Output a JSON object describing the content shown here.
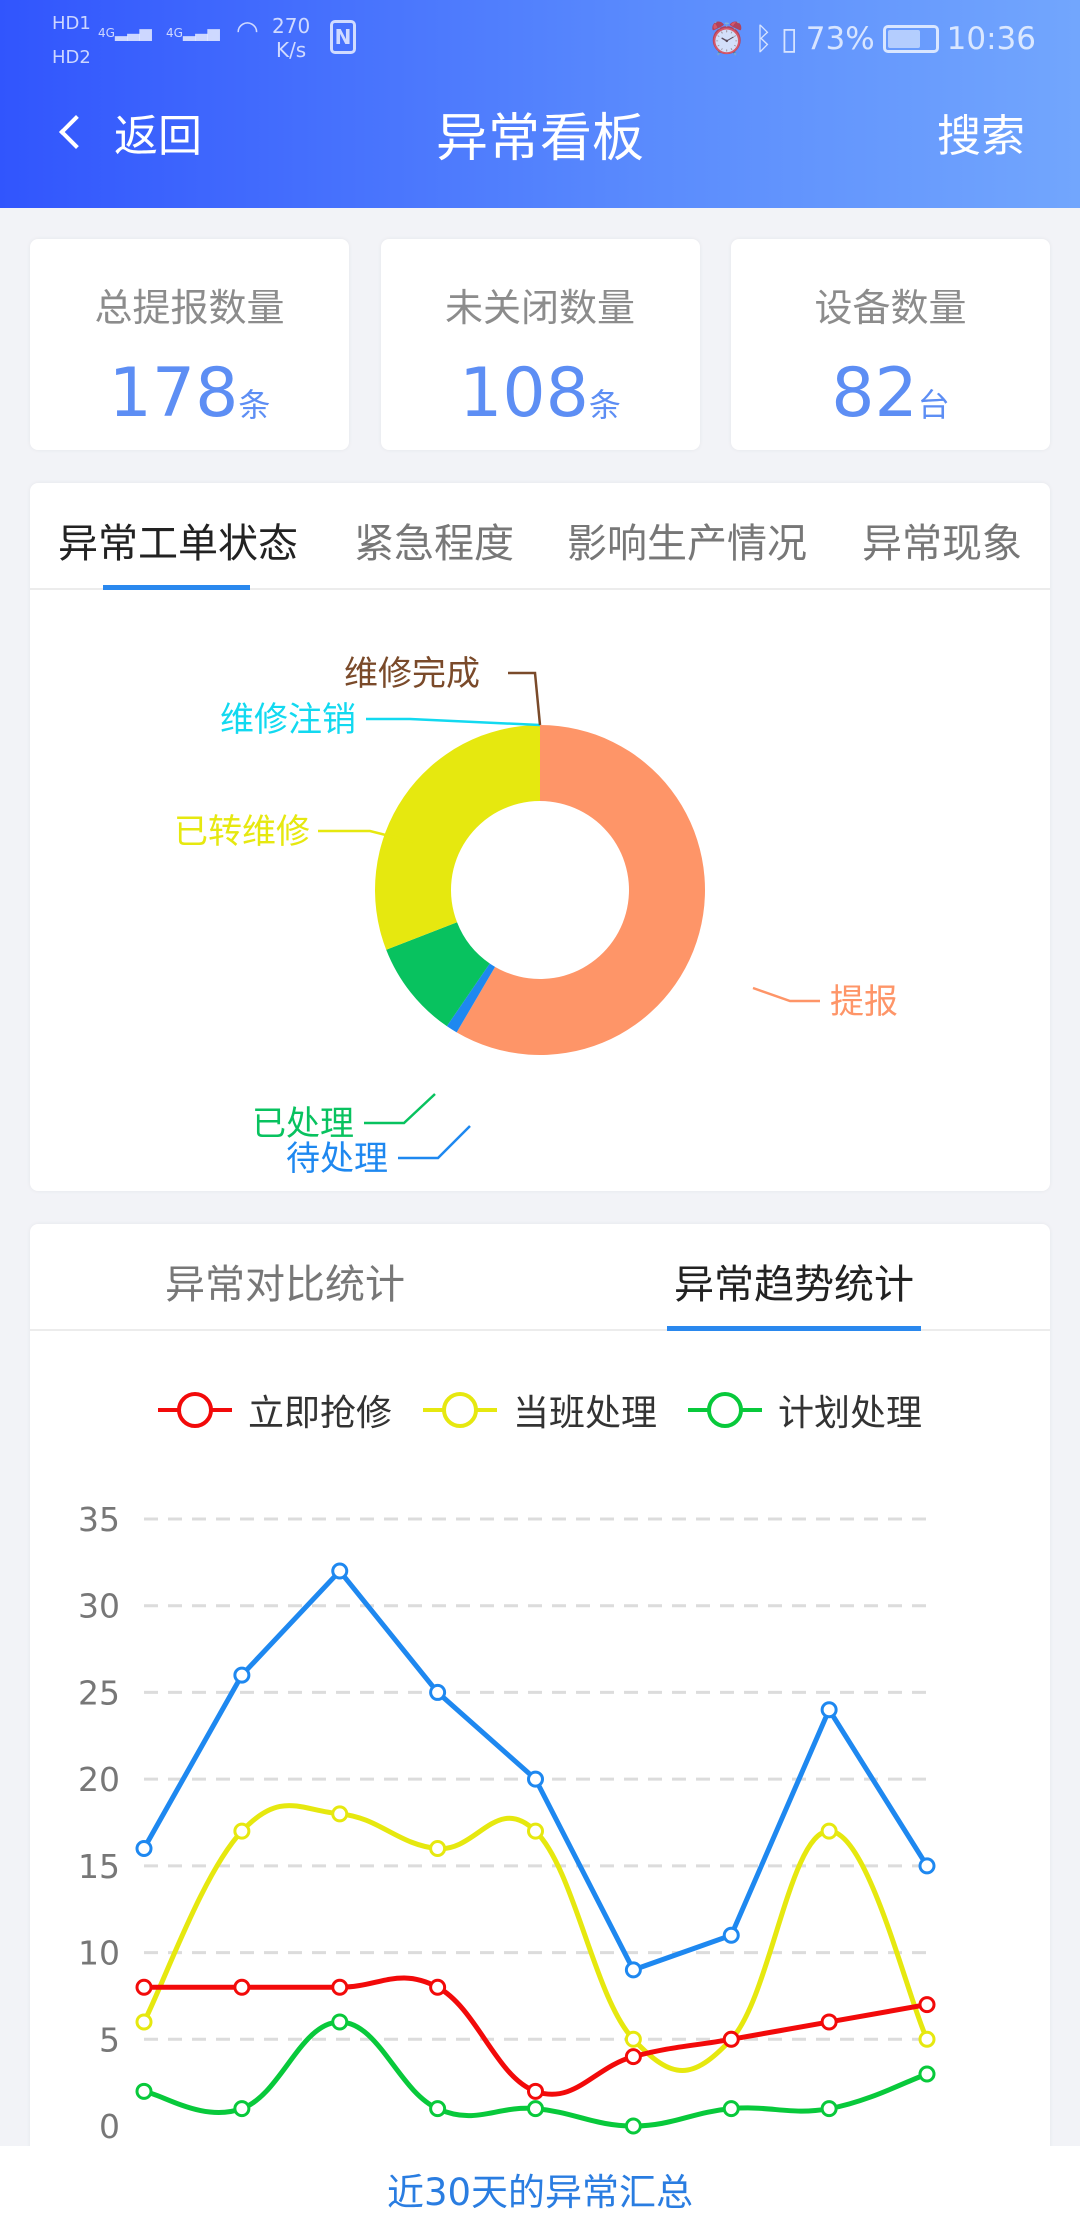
{
  "status_bar": {
    "sim": [
      "HD1",
      "HD2"
    ],
    "network": [
      "4G",
      "4G"
    ],
    "speed_value": "270",
    "speed_unit": "K/s",
    "nfc": "N",
    "battery": "73%",
    "battery_level": 0.73,
    "time": "10:36"
  },
  "header": {
    "back_label": "返回",
    "title": "异常看板",
    "search_label": "搜索",
    "gradient": [
      "#3155fd",
      "#72a6fd"
    ]
  },
  "stats": [
    {
      "label": "总提报数量",
      "value": "178",
      "unit": "条"
    },
    {
      "label": "未关闭数量",
      "value": "108",
      "unit": "条"
    },
    {
      "label": "设备数量",
      "value": "82",
      "unit": "台"
    }
  ],
  "status_panel": {
    "tabs": [
      "异常工单状态",
      "紧急程度",
      "影响生产情况",
      "异常现象"
    ],
    "active_tab": 0
  },
  "trend_panel": {
    "tabs": [
      "异常对比统计",
      "异常趋势统计"
    ],
    "active_tab": 1
  },
  "footer": {
    "label": "近30天的异常汇总"
  },
  "chart_data": [
    {
      "type": "pie",
      "donut": true,
      "slices": [
        {
          "label": "提报",
          "value": 104,
          "color": "#fe9568"
        },
        {
          "label": "待处理",
          "value": 2,
          "color": "#1e88f0"
        },
        {
          "label": "已处理",
          "value": 17,
          "color": "#08c25f"
        },
        {
          "label": "已转维修",
          "value": 55,
          "color": "#e6e80f"
        },
        {
          "label": "维修注销",
          "value": 0,
          "color": "#12d9f0"
        },
        {
          "label": "维修完成",
          "value": 0,
          "color": "#7a4a2a"
        }
      ]
    },
    {
      "type": "line",
      "grid": true,
      "legend": "top",
      "ylim": [
        0,
        35
      ],
      "yticks": [
        "0",
        "5",
        "10",
        "15",
        "20",
        "25",
        "30",
        "35"
      ],
      "series": [
        {
          "name": "",
          "values": [
            16,
            26,
            32,
            25,
            20,
            9,
            11,
            24,
            15
          ],
          "color": "#1e88f0",
          "smooth": false
        },
        {
          "name": "当班处理",
          "values": [
            6,
            17,
            18,
            16,
            17,
            5,
            5,
            17,
            5
          ],
          "color": "#e6e80f",
          "smooth": true
        },
        {
          "name": "立即抢修",
          "values": [
            8,
            8,
            8,
            8,
            2,
            4,
            5,
            6,
            7
          ],
          "color": "#f20a0a",
          "smooth": true
        },
        {
          "name": "计划处理",
          "values": [
            2,
            1,
            6,
            1,
            1,
            0,
            1,
            1,
            3
          ],
          "color": "#08c93b",
          "smooth": true
        }
      ],
      "legend_items": [
        {
          "label": "立即抢修",
          "color": "#f20a0a"
        },
        {
          "label": "当班处理",
          "color": "#e6e80f"
        },
        {
          "label": "计划处理",
          "color": "#08c93b"
        }
      ]
    }
  ]
}
